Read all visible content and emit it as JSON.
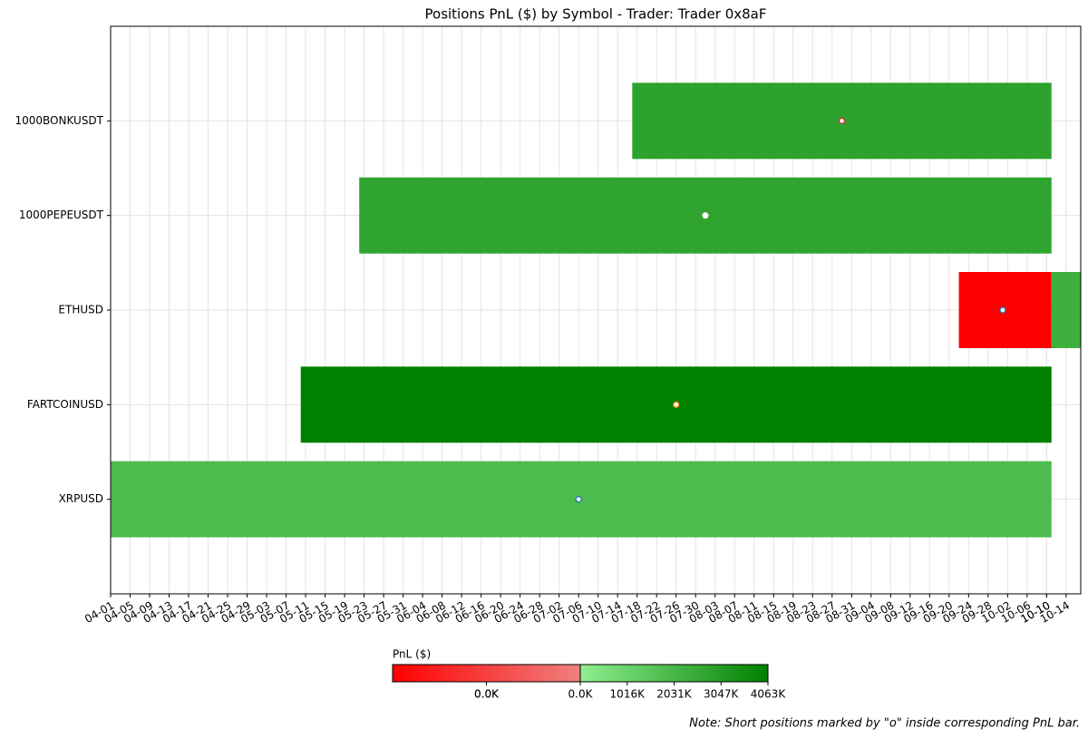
{
  "chart_data": {
    "type": "timeline",
    "title": "Positions PnL ($) by Symbol - Trader: Trader 0x8aF",
    "xlim": [
      "04-01",
      "10-17"
    ],
    "xticks": [
      "04-01",
      "04-05",
      "04-09",
      "04-13",
      "04-17",
      "04-21",
      "04-25",
      "04-29",
      "05-03",
      "05-07",
      "05-11",
      "05-15",
      "05-19",
      "05-23",
      "05-27",
      "05-31",
      "06-04",
      "06-08",
      "06-12",
      "06-16",
      "06-20",
      "06-24",
      "06-28",
      "07-02",
      "07-06",
      "07-10",
      "07-14",
      "07-18",
      "07-22",
      "07-26",
      "07-30",
      "08-03",
      "08-07",
      "08-11",
      "08-15",
      "08-19",
      "08-23",
      "08-27",
      "08-31",
      "09-04",
      "09-08",
      "09-12",
      "09-16",
      "09-20",
      "09-24",
      "09-28",
      "10-02",
      "10-06",
      "10-10",
      "10-10",
      "10-14"
    ],
    "grid": true,
    "series": [
      {
        "name": "1000BONKUSDT",
        "segments": [
          {
            "start": "07-17",
            "end": "10-11",
            "pnl": 2800000
          }
        ],
        "short": "08-29",
        "marker_color": "#d62728"
      },
      {
        "name": "1000PEPEUSDT",
        "segments": [
          {
            "start": "05-22",
            "end": "10-11",
            "pnl": 2750000
          }
        ],
        "short": "08-01",
        "marker_color": "#e8e8e8"
      },
      {
        "name": "ETHUSD",
        "segments": [
          {
            "start": "09-22",
            "end": "10-11",
            "pnl": -50
          },
          {
            "start": "10-11",
            "end": "10-18",
            "pnl": 2300000
          }
        ],
        "short": "10-01",
        "marker_color": "#1f77b4"
      },
      {
        "name": "FARTCOINUSD",
        "segments": [
          {
            "start": "05-10",
            "end": "10-11",
            "pnl": 4063000
          }
        ],
        "short": "07-26",
        "marker_color": "#ff7f0e"
      },
      {
        "name": "XRPUSD",
        "segments": [
          {
            "start": "04-01",
            "end": "10-11",
            "pnl": 1900000
          }
        ],
        "short": "07-06",
        "marker_color": "#1f77b4"
      }
    ],
    "colorbar": {
      "label": "PnL ($)",
      "negative": {
        "range": [
          -50,
          0
        ],
        "colors": [
          "#ff0000",
          "#f08080"
        ],
        "ticks": [
          {
            "value": -25,
            "label": "0.0K"
          },
          {
            "value": -25,
            "label": "0.0K"
          }
        ]
      },
      "positive": {
        "range": [
          0,
          4063000
        ],
        "colors": [
          "#90ee90",
          "#008000"
        ],
        "ticks": [
          {
            "value": 0,
            "label": "0.0K"
          },
          {
            "value": 1016000,
            "label": "1016K"
          },
          {
            "value": 2031000,
            "label": "2031K"
          },
          {
            "value": 3047000,
            "label": "3047K"
          },
          {
            "value": 4063000,
            "label": "4063K"
          }
        ]
      }
    },
    "note": "Note: Short positions marked by \"o\" inside corresponding PnL bar."
  }
}
